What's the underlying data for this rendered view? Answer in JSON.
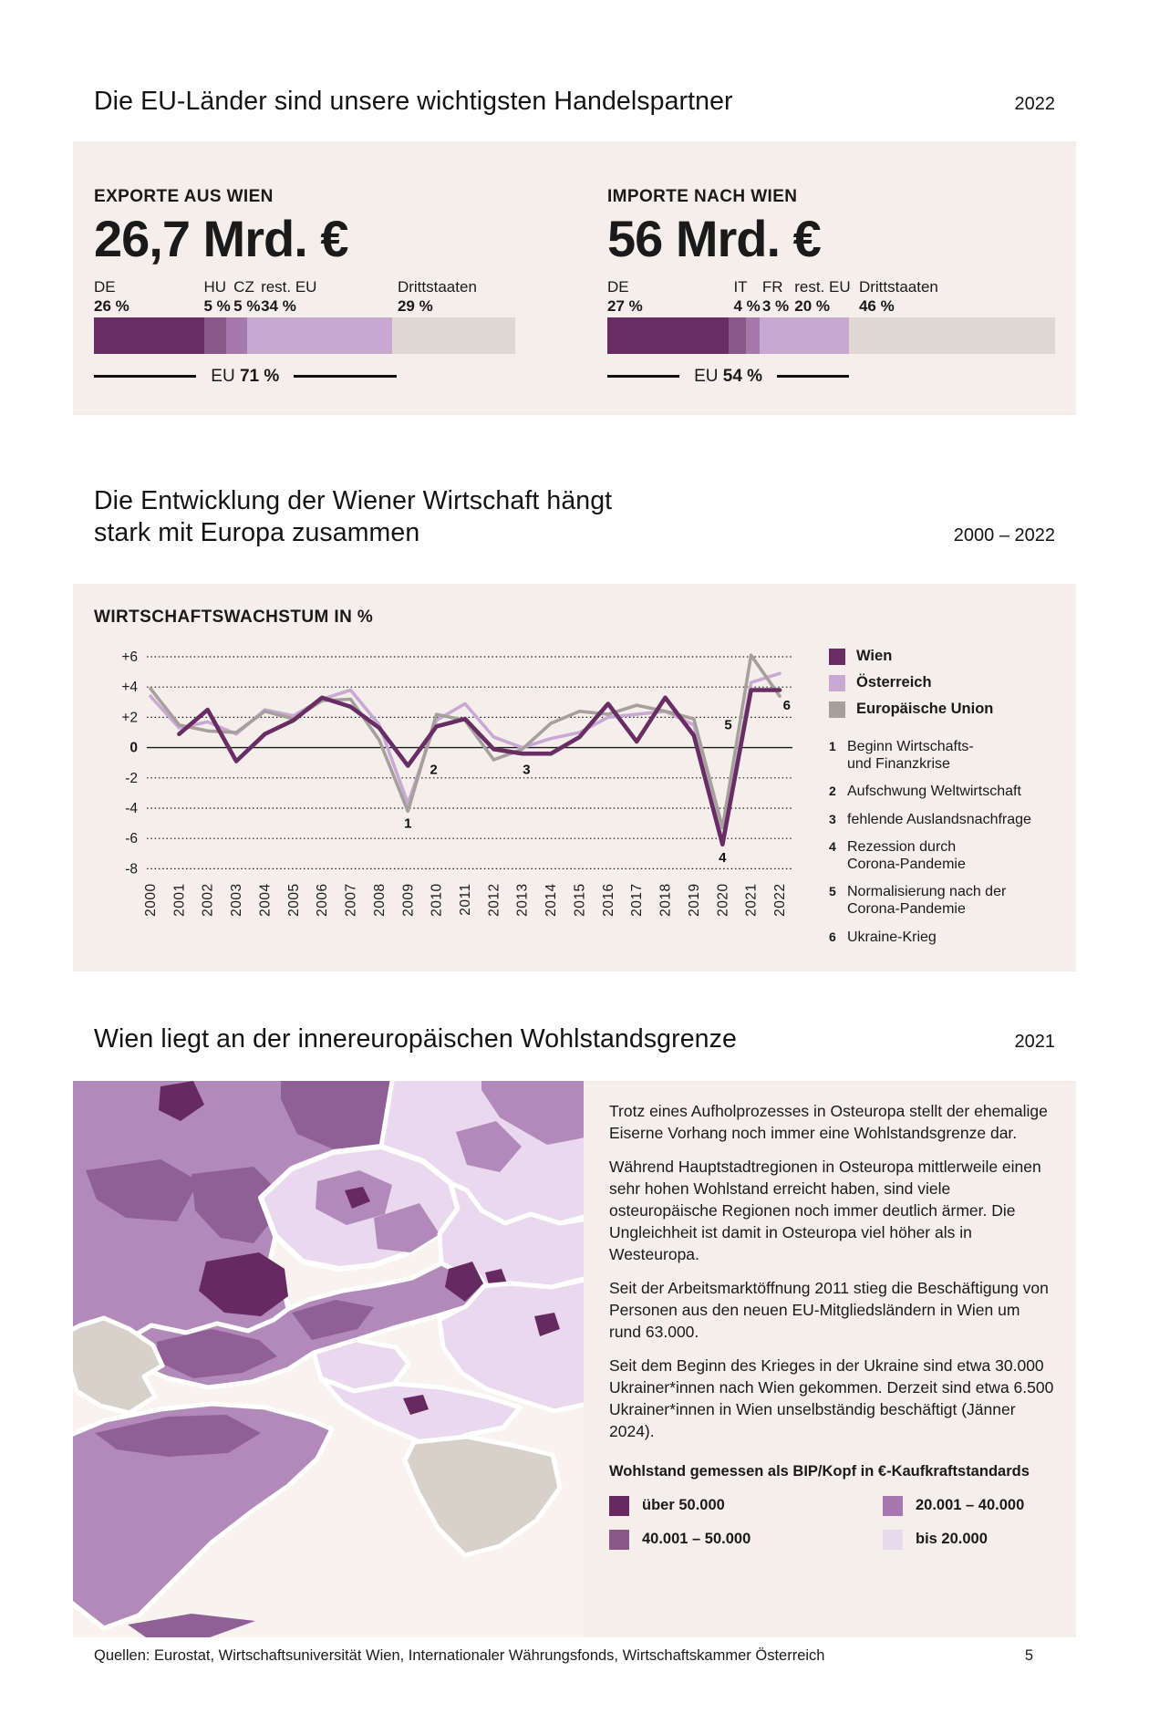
{
  "page": {
    "footer": {
      "sources": "Quellen: Eurostat, Wirtschaftsuniversität Wien, Internationaler Währungsfonds, Wirtschaftskammer Österreich",
      "page_number": "5"
    }
  },
  "trade_section": {
    "title": "Die EU-Länder sind unsere wichtigsten Handelspartner",
    "year": "2022"
  },
  "growth_section": {
    "title_line1": "Die Entwicklung der Wiener Wirtschaft hängt",
    "title_line2": "stark mit Europa zusammen",
    "year_range": "2000 – 2022"
  },
  "map_section": {
    "title": "Wien liegt an der innereuropäischen Wohlstandsgrenze",
    "year": "2021",
    "paragraphs": [
      "Trotz eines Aufholprozesses in Osteuropa stellt der ehemalige Eiserne Vorhang noch immer eine Wohlstandsgrenze dar.",
      "Während Hauptstadtregionen in Osteuropa mittlerweile einen sehr hohen Wohlstand erreicht haben, sind viele osteuropäische Regionen noch immer deutlich ärmer. Die Ungleichheit ist damit in Osteuropa viel höher als in Westeuropa.",
      "Seit der Arbeitsmarktöffnung 2011 stieg die Beschäftigung von Personen aus den neuen EU-Mitgliedsländern in Wien um rund 63.000.",
      "Seit dem Beginn des Krieges in der Ukraine sind etwa 30.000 Ukrainer*innen nach Wien gekommen. Derzeit sind etwa 6.500 Ukrainer*innen in Wien unselbständig beschäftigt (Jänner 2024)."
    ],
    "legend_title": "Wohlstand gemessen als BIP/Kopf in €-Kaufkraftstandards",
    "legend": [
      {
        "label": "über 50.000",
        "color": "#662a60"
      },
      {
        "label": "20.001 – 40.000",
        "color": "#a678ae"
      },
      {
        "label": "40.001 – 50.000",
        "color": "#8a5789"
      },
      {
        "label": "bis 20.000",
        "color": "#e8d9ec"
      }
    ],
    "map_colors": {
      "over_50k": "#662a60",
      "k40_50": "#8f5f95",
      "k20_40": "#b18ab9",
      "under_20k": "#ead9ee",
      "no_data": "#d6d1c9",
      "background": "#f8f3ef"
    }
  },
  "chart_data": [
    {
      "type": "line",
      "id": "wirtschaftswachstum",
      "title": "WIRTSCHAFTSWACHSTUM IN %",
      "x": [
        2000,
        2001,
        2002,
        2003,
        2004,
        2005,
        2006,
        2007,
        2008,
        2009,
        2010,
        2011,
        2012,
        2013,
        2014,
        2015,
        2016,
        2017,
        2018,
        2019,
        2020,
        2021,
        2022
      ],
      "series": [
        {
          "name": "Wien",
          "color": "#682d62",
          "values": [
            null,
            0.9,
            2.5,
            -0.9,
            0.9,
            1.8,
            3.3,
            2.7,
            1.3,
            -1.2,
            1.4,
            1.9,
            -0.1,
            -0.4,
            -0.4,
            0.7,
            2.9,
            0.4,
            3.3,
            0.8,
            -6.4,
            3.8,
            3.8
          ]
        },
        {
          "name": "Österreich",
          "color": "#c9a9d4",
          "values": [
            3.4,
            1.3,
            1.7,
            0.9,
            2.5,
            2.1,
            3.2,
            3.8,
            1.5,
            -3.7,
            1.8,
            2.9,
            0.7,
            0.0,
            0.6,
            1.0,
            2.0,
            2.2,
            2.4,
            1.5,
            -6.2,
            4.3,
            4.9
          ]
        },
        {
          "name": "Europäische Union",
          "color": "#a5a09b",
          "values": [
            3.9,
            1.5,
            1.1,
            1.0,
            2.4,
            1.9,
            3.1,
            3.2,
            0.5,
            -4.2,
            2.2,
            1.8,
            -0.8,
            -0.1,
            1.6,
            2.4,
            2.2,
            2.8,
            2.4,
            1.9,
            -5.3,
            6.1,
            3.4
          ]
        }
      ],
      "ylim": [
        -8,
        6
      ],
      "yticks": [
        {
          "value": 6,
          "label": "+6"
        },
        {
          "value": 4,
          "label": "+4"
        },
        {
          "value": 2,
          "label": "+2"
        },
        {
          "value": 0,
          "label": "0"
        },
        {
          "value": -2,
          "label": "-2"
        },
        {
          "value": -4,
          "label": "-4"
        },
        {
          "value": -6,
          "label": "-6"
        },
        {
          "value": -8,
          "label": "-8"
        }
      ],
      "grid": "dotted-horizontal",
      "legend_position": "right",
      "annotations": [
        {
          "n": "1",
          "x": 2009,
          "y": -5.3,
          "text": "Beginn Wirtschafts-\nund Finanzkrise"
        },
        {
          "n": "2",
          "x": 2009.9,
          "y": -1.75,
          "text": "Aufschwung Weltwirtschaft"
        },
        {
          "n": "3",
          "x": 2013.15,
          "y": -1.75,
          "text": "fehlende Auslandsnachfrage"
        },
        {
          "n": "4",
          "x": 2020,
          "y": -7.55,
          "text": "Rezession durch\nCorona-Pandemie"
        },
        {
          "n": "5",
          "x": 2020.2,
          "y": 1.2,
          "text": "Normalisierung nach der\nCorona-Pandemie"
        },
        {
          "n": "6",
          "x": 2022.25,
          "y": 2.5,
          "text": "Ukraine-Krieg"
        }
      ]
    },
    {
      "type": "bar",
      "subtype": "stacked-horizontal",
      "id": "exporte",
      "title": "EXPORTE AUS WIEN",
      "total": "26,7 Mrd. €",
      "categories": [
        "DE",
        "HU",
        "CZ",
        "rest. EU",
        "Drittstaaten"
      ],
      "values": [
        26,
        5,
        5,
        34,
        29
      ],
      "value_labels": [
        "26 %",
        "5 %",
        "5 %",
        "34 %",
        "29 %"
      ],
      "colors": [
        "#682d62",
        "#8a5789",
        "#a678ae",
        "#c7a8d1",
        "#ddd8d2"
      ],
      "label_offsets_pct": [
        0,
        25.8,
        32.8,
        39.2,
        71.3
      ],
      "eu_share": {
        "label": "EU",
        "value_label": "71 %",
        "pct": 71
      }
    },
    {
      "type": "bar",
      "subtype": "stacked-horizontal",
      "id": "importe",
      "title": "IMPORTE NACH WIEN",
      "total": "56 Mrd. €",
      "categories": [
        "DE",
        "IT",
        "FR",
        "rest. EU",
        "Drittstaaten"
      ],
      "values": [
        27,
        4,
        3,
        20,
        46
      ],
      "value_labels": [
        "27 %",
        "4 %",
        "3 %",
        "20 %",
        "46 %"
      ],
      "colors": [
        "#682d62",
        "#8a5789",
        "#a678ae",
        "#c7a8d1",
        "#ddd8d2"
      ],
      "label_offsets_pct": [
        0,
        28.2,
        34.6,
        41.8,
        56.2
      ],
      "eu_share": {
        "label": "EU",
        "value_label": "54 %",
        "pct": 54
      }
    }
  ]
}
